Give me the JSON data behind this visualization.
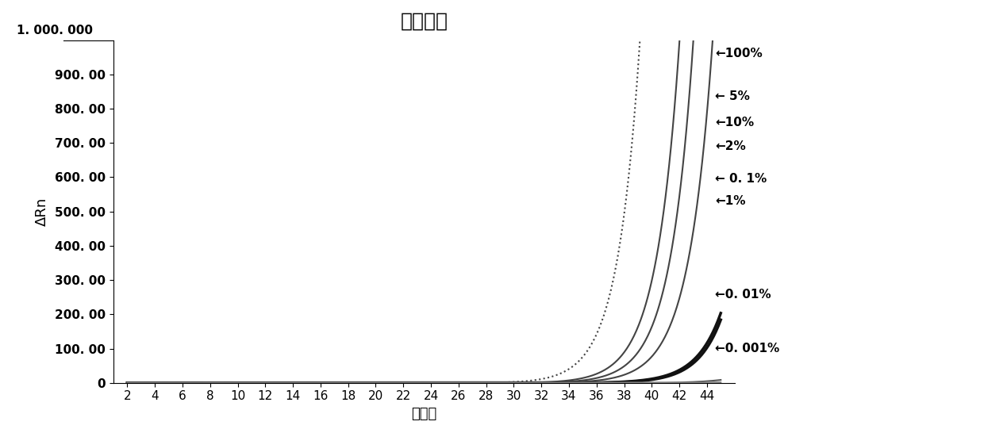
{
  "title": "扩增图谱",
  "xlabel": "循环数",
  "ylabel": "ΔRn",
  "xlim": [
    1,
    46
  ],
  "ylim": [
    0,
    1000
  ],
  "xticks": [
    2,
    4,
    6,
    8,
    10,
    12,
    14,
    16,
    18,
    20,
    22,
    24,
    26,
    28,
    30,
    32,
    34,
    36,
    38,
    40,
    42,
    44
  ],
  "ytick_vals": [
    0,
    100,
    200,
    300,
    400,
    500,
    600,
    700,
    800,
    900
  ],
  "ytick_labels": [
    "0",
    "100. 00",
    "200. 00",
    "300. 00",
    "400. 00",
    "500. 00",
    "600. 00",
    "700. 00",
    "800. 00",
    "900. 00"
  ],
  "top_ylabel": "1. 000. 000",
  "curves": [
    {
      "label": "100%",
      "start_cycle": 28.0,
      "growth_rate": 0.62,
      "linestyle": "dotted",
      "color": "#444444",
      "linewidth": 1.5,
      "ann_text": "←100%",
      "ann_y": 960
    },
    {
      "label": "5%",
      "start_cycle": 31.5,
      "growth_rate": 0.6,
      "linestyle": "solid",
      "color": "#444444",
      "linewidth": 1.5,
      "ann_text": "← 5%",
      "ann_y": 835
    },
    {
      "label": "10%",
      "start_cycle": 30.5,
      "growth_rate": 0.6,
      "linestyle": "solid",
      "color": "#444444",
      "linewidth": 1.5,
      "ann_text": "←10%",
      "ann_y": 760
    },
    {
      "label": "2%",
      "start_cycle": 32.5,
      "growth_rate": 0.58,
      "linestyle": "solid",
      "color": "#444444",
      "linewidth": 1.5,
      "ann_text": "←2%",
      "ann_y": 690
    },
    {
      "label": "0.1%",
      "start_cycle": 36.0,
      "growth_rate": 0.58,
      "linestyle": "solid",
      "color": "#111111",
      "linewidth": 2.5,
      "ann_text": "← 0. 1%",
      "ann_y": 595
    },
    {
      "label": "1%",
      "start_cycle": 35.5,
      "growth_rate": 0.56,
      "linestyle": "solid",
      "color": "#111111",
      "linewidth": 2.5,
      "ann_text": "←1%",
      "ann_y": 530
    },
    {
      "label": "0.01%",
      "start_cycle": 40.5,
      "growth_rate": 0.5,
      "linestyle": "solid",
      "color": "#555555",
      "linewidth": 1.5,
      "ann_text": "←0. 01%",
      "ann_y": 258
    },
    {
      "label": "0.001%",
      "start_cycle": 43.0,
      "growth_rate": 0.45,
      "linestyle": "solid",
      "color": "#888888",
      "linewidth": 1.5,
      "ann_text": "←0. 001%",
      "ann_y": 100
    }
  ],
  "background_color": "#ffffff",
  "title_fontsize": 18,
  "label_fontsize": 13,
  "tick_fontsize": 11,
  "ann_fontsize": 11
}
